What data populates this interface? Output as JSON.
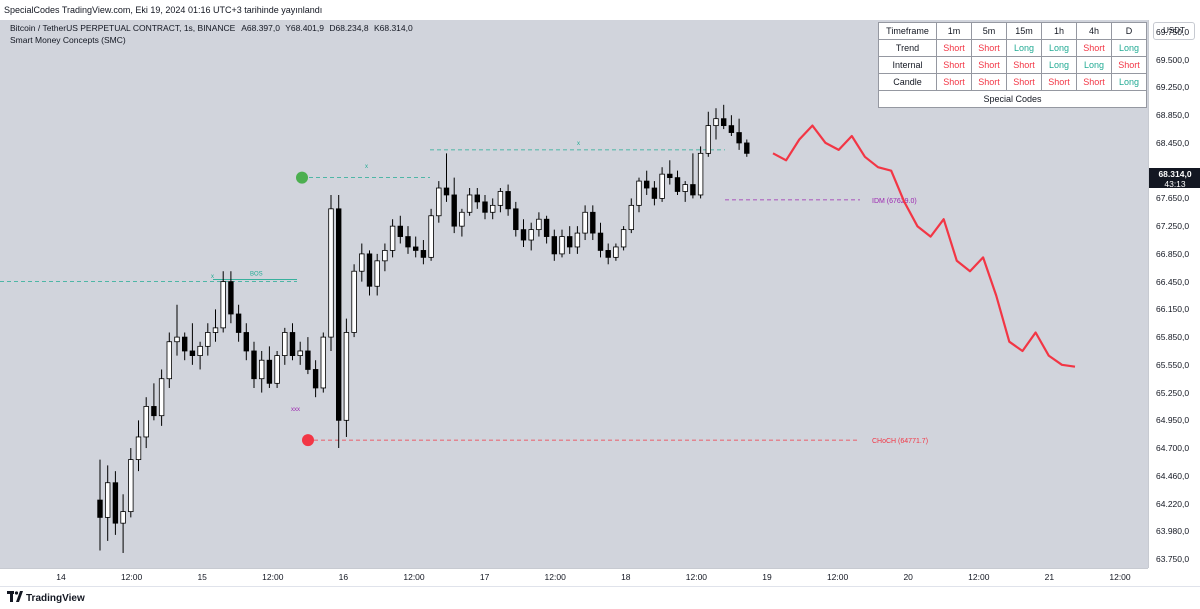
{
  "header": {
    "publisher_line": "SpecialCodes TradingView.com, Eki 19, 2024 01:16 UTC+3 tarihinde yayınlandı"
  },
  "legend": {
    "symbol": "Bitcoin / TetherUS PERPETUAL CONTRACT, 1s, BINANCE",
    "open": "A68.397,0",
    "high": "Y68.401,9",
    "low": "D68.234,8",
    "close": "K68.314,0",
    "indicator": "Smart Money Concepts (SMC)"
  },
  "signal_table": {
    "header": [
      "Timeframe",
      "1m",
      "5m",
      "15m",
      "1h",
      "4h",
      "D"
    ],
    "rows": [
      {
        "label": "Trend",
        "values": [
          "Short",
          "Short",
          "Long",
          "Long",
          "Short",
          "Long"
        ]
      },
      {
        "label": "Internal",
        "values": [
          "Short",
          "Short",
          "Short",
          "Long",
          "Long",
          "Short"
        ]
      },
      {
        "label": "Candle",
        "values": [
          "Short",
          "Short",
          "Short",
          "Short",
          "Short",
          "Long"
        ]
      }
    ],
    "footer": "Special Codes"
  },
  "price_axis": {
    "currency": "USDT",
    "last_price": "68.314,0",
    "countdown": "43:13"
  },
  "footer": {
    "logo_text": "TradingView"
  },
  "chart_data": {
    "type": "candlestick",
    "title": "Bitcoin / TetherUS PERPETUAL CONTRACT, 1s, BINANCE",
    "y_ticks": [
      {
        "label": "69.750,0",
        "value": 69750
      },
      {
        "label": "69.500,0",
        "value": 69500
      },
      {
        "label": "69.250,0",
        "value": 69250
      },
      {
        "label": "68.850,0",
        "value": 68850
      },
      {
        "label": "68.450,0",
        "value": 68450
      },
      {
        "label": "68.050,0",
        "value": 68050
      },
      {
        "label": "67.650,0",
        "value": 67650
      },
      {
        "label": "67.250,0",
        "value": 67250
      },
      {
        "label": "66.850,0",
        "value": 66850
      },
      {
        "label": "66.450,0",
        "value": 66450
      },
      {
        "label": "66.150,0",
        "value": 66150
      },
      {
        "label": "65.850,0",
        "value": 65850
      },
      {
        "label": "65.550,0",
        "value": 65550
      },
      {
        "label": "65.250,0",
        "value": 65250
      },
      {
        "label": "64.950,0",
        "value": 64950
      },
      {
        "label": "64.700,0",
        "value": 64700
      },
      {
        "label": "64.460,0",
        "value": 64460
      },
      {
        "label": "64.220,0",
        "value": 64220
      },
      {
        "label": "63.980,0",
        "value": 63980
      },
      {
        "label": "63.750,0",
        "value": 63750
      }
    ],
    "x_ticks": [
      "14",
      "12:00",
      "15",
      "12:00",
      "16",
      "12:00",
      "17",
      "12:00",
      "18",
      "12:00",
      "19",
      "12:00",
      "20",
      "12:00",
      "21",
      "12:00"
    ],
    "candles": [
      [
        64250,
        64600,
        63820,
        64100
      ],
      [
        64100,
        64550,
        63900,
        64400
      ],
      [
        64400,
        64500,
        63950,
        64050
      ],
      [
        64050,
        64300,
        63800,
        64150
      ],
      [
        64150,
        64700,
        64100,
        64600
      ],
      [
        64600,
        64950,
        64500,
        64800
      ],
      [
        64800,
        65200,
        64700,
        65100
      ],
      [
        65100,
        65350,
        64950,
        65000
      ],
      [
        65000,
        65500,
        64900,
        65400
      ],
      [
        65400,
        65900,
        65300,
        65800
      ],
      [
        65800,
        66200,
        65650,
        65850
      ],
      [
        65850,
        65900,
        65600,
        65700
      ],
      [
        65700,
        66000,
        65550,
        65650
      ],
      [
        65650,
        65800,
        65500,
        65750
      ],
      [
        65750,
        66000,
        65650,
        65900
      ],
      [
        65900,
        66150,
        65800,
        65950
      ],
      [
        65950,
        66600,
        65900,
        66450
      ],
      [
        66450,
        66600,
        66000,
        66100
      ],
      [
        66100,
        66200,
        65800,
        65900
      ],
      [
        65900,
        66000,
        65600,
        65700
      ],
      [
        65700,
        65800,
        65300,
        65400
      ],
      [
        65400,
        65700,
        65250,
        65600
      ],
      [
        65600,
        65750,
        65300,
        65350
      ],
      [
        65350,
        65700,
        65300,
        65650
      ],
      [
        65650,
        65950,
        65550,
        65900
      ],
      [
        65900,
        66000,
        65600,
        65650
      ],
      [
        65650,
        65800,
        65550,
        65700
      ],
      [
        65700,
        65850,
        65450,
        65500
      ],
      [
        65500,
        65600,
        65200,
        65300
      ],
      [
        65300,
        65900,
        65250,
        65850
      ],
      [
        65850,
        67700,
        65700,
        67500
      ],
      [
        67500,
        67700,
        64700,
        64950
      ],
      [
        64950,
        66050,
        64800,
        65900
      ],
      [
        65900,
        66700,
        65850,
        66600
      ],
      [
        66600,
        67000,
        66450,
        66850
      ],
      [
        66850,
        66900,
        66300,
        66400
      ],
      [
        66400,
        66850,
        66300,
        66750
      ],
      [
        66750,
        67000,
        66600,
        66900
      ],
      [
        66900,
        67350,
        66800,
        67250
      ],
      [
        67250,
        67400,
        67000,
        67100
      ],
      [
        67100,
        67250,
        66850,
        66950
      ],
      [
        66950,
        67100,
        66800,
        66900
      ],
      [
        66900,
        67050,
        66700,
        66800
      ],
      [
        66800,
        67500,
        66750,
        67400
      ],
      [
        67400,
        67900,
        67300,
        67800
      ],
      [
        67800,
        68300,
        67600,
        67700
      ],
      [
        67700,
        67950,
        67150,
        67250
      ],
      [
        67250,
        67500,
        67100,
        67450
      ],
      [
        67450,
        67800,
        67400,
        67700
      ],
      [
        67700,
        67800,
        67500,
        67600
      ],
      [
        67600,
        67700,
        67350,
        67450
      ],
      [
        67450,
        67650,
        67350,
        67550
      ],
      [
        67550,
        67800,
        67450,
        67750
      ],
      [
        67750,
        67850,
        67400,
        67500
      ],
      [
        67500,
        67600,
        67100,
        67200
      ],
      [
        67200,
        67350,
        66950,
        67050
      ],
      [
        67050,
        67300,
        66900,
        67200
      ],
      [
        67200,
        67450,
        67100,
        67350
      ],
      [
        67350,
        67400,
        67000,
        67100
      ],
      [
        67100,
        67200,
        66750,
        66850
      ],
      [
        66850,
        67200,
        66800,
        67100
      ],
      [
        67100,
        67250,
        66850,
        66950
      ],
      [
        66950,
        67250,
        66850,
        67150
      ],
      [
        67150,
        67550,
        67050,
        67450
      ],
      [
        67450,
        67550,
        67050,
        67150
      ],
      [
        67150,
        67300,
        66800,
        66900
      ],
      [
        66900,
        67000,
        66700,
        66800
      ],
      [
        66800,
        67000,
        66750,
        66950
      ],
      [
        66950,
        67250,
        66900,
        67200
      ],
      [
        67200,
        67650,
        67150,
        67550
      ],
      [
        67550,
        67950,
        67450,
        67900
      ],
      [
        67900,
        68050,
        67700,
        67800
      ],
      [
        67800,
        67900,
        67550,
        67650
      ],
      [
        67650,
        68100,
        67600,
        68000
      ],
      [
        68000,
        68200,
        67850,
        67950
      ],
      [
        67950,
        68050,
        67700,
        67750
      ],
      [
        67750,
        67900,
        67600,
        67850
      ],
      [
        67850,
        68300,
        67650,
        67700
      ],
      [
        67700,
        68400,
        67650,
        68300
      ],
      [
        68300,
        68900,
        68250,
        68700
      ],
      [
        68700,
        68950,
        68500,
        68800
      ],
      [
        68800,
        69000,
        68650,
        68700
      ],
      [
        68700,
        68850,
        68550,
        68600
      ],
      [
        68600,
        68800,
        68350,
        68450
      ],
      [
        68450,
        68500,
        68250,
        68300
      ]
    ],
    "forecast_path": [
      [
        68300,
        0
      ],
      [
        68200,
        1
      ],
      [
        68500,
        2
      ],
      [
        68700,
        3
      ],
      [
        68450,
        4
      ],
      [
        68350,
        5
      ],
      [
        68550,
        6
      ],
      [
        68250,
        7
      ],
      [
        68100,
        8
      ],
      [
        68050,
        9
      ],
      [
        67600,
        10
      ],
      [
        67250,
        11
      ],
      [
        67100,
        12
      ],
      [
        67350,
        13
      ],
      [
        66750,
        14
      ],
      [
        66600,
        15
      ],
      [
        66800,
        16
      ],
      [
        66300,
        17
      ],
      [
        65800,
        18
      ],
      [
        65700,
        19
      ],
      [
        65900,
        20
      ],
      [
        65650,
        21
      ],
      [
        65550,
        22
      ],
      [
        65530,
        23
      ]
    ],
    "annotations": {
      "bos_label": "BOS",
      "choch_label": "CHoCH  (64771.7)",
      "idm_label": "IDM  (67629.0)",
      "choch_level": 64771.7,
      "idm_level": 67629.0,
      "bos_level": 66450,
      "green_level": 67950,
      "top_level": 68350,
      "xxx_label": "xxx",
      "x_marker": "x"
    },
    "colors": {
      "up": "#ffffff",
      "down": "#000000",
      "forecast": "#f23645",
      "bos": "#22ab94",
      "choch": "#f23645",
      "idm": "#9c27b0"
    }
  }
}
